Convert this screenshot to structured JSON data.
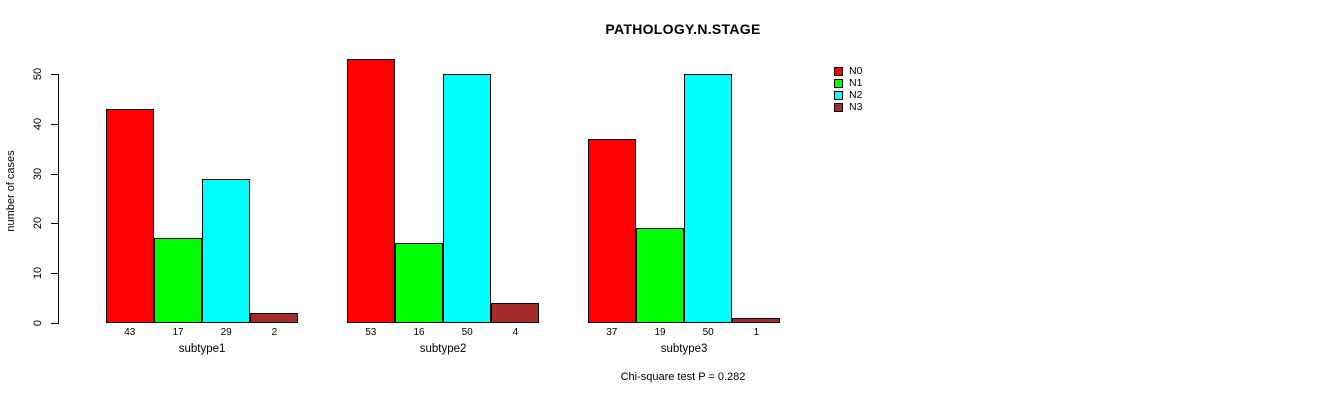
{
  "chart_data": {
    "type": "bar",
    "title": "PATHOLOGY.N.STAGE",
    "ylabel": "number of cases",
    "xlabel": "",
    "ylim": [
      0,
      50
    ],
    "yticks": [
      0,
      10,
      20,
      30,
      40,
      50
    ],
    "grid": false,
    "legend_position": "top-right",
    "bar_value_labels": true,
    "categories": [
      "subtype1",
      "subtype2",
      "subtype3"
    ],
    "series": [
      {
        "name": "N0",
        "color": "#FF0000",
        "values": [
          43,
          53,
          37
        ]
      },
      {
        "name": "N1",
        "color": "#00FF00",
        "values": [
          17,
          16,
          19
        ]
      },
      {
        "name": "N2",
        "color": "#00FFFF",
        "values": [
          29,
          50,
          50
        ]
      },
      {
        "name": "N3",
        "color": "#A52A2A",
        "values": [
          2,
          4,
          1
        ]
      }
    ],
    "annotation": "Chi-square test P = 0.282",
    "colors": {
      "background": "#FFFFFF",
      "axis": "#000000",
      "text": "#000000"
    }
  }
}
